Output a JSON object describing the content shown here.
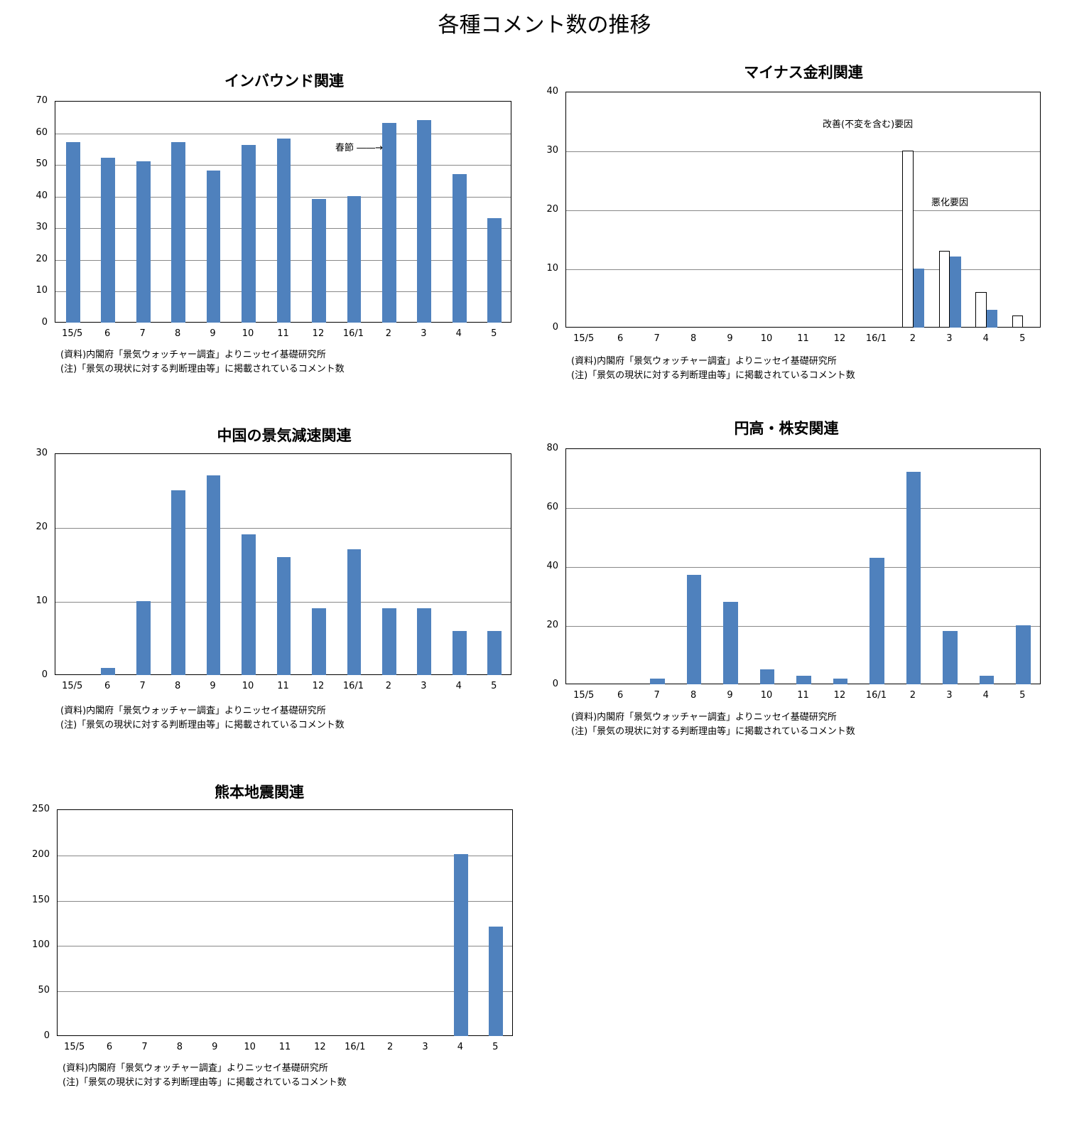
{
  "title": "各種コメント数の推移",
  "notes": {
    "source": "(資料)内閣府「景気ウォッチャー調査」よりニッセイ基礎研究所",
    "note": "(注)「景気の現状に対する判断理由等」に掲載されているコメント数"
  },
  "colors": {
    "bar": "#4f81bd",
    "grid": "#888888"
  },
  "chart_data": [
    {
      "type": "bar",
      "title": "インバウンド関連",
      "categories": [
        "15/5",
        "6",
        "7",
        "8",
        "9",
        "10",
        "11",
        "12",
        "16/1",
        "2",
        "3",
        "4",
        "5"
      ],
      "values": [
        57,
        52,
        51,
        57,
        48,
        56,
        58,
        39,
        40,
        63,
        64,
        47,
        33
      ],
      "ylim": [
        0,
        70
      ],
      "yticks": [
        0,
        10,
        20,
        30,
        40,
        50,
        60,
        70
      ],
      "annotations": [
        {
          "text": "春節",
          "target": "2"
        }
      ]
    },
    {
      "type": "bar",
      "title": "マイナス金利関連",
      "categories": [
        "15/5",
        "6",
        "7",
        "8",
        "9",
        "10",
        "11",
        "12",
        "16/1",
        "2",
        "3",
        "4",
        "5"
      ],
      "series": [
        {
          "name": "改善(不変を含む)要因",
          "values": [
            0,
            0,
            0,
            0,
            0,
            0,
            0,
            0,
            0,
            30,
            13,
            6,
            2
          ]
        },
        {
          "name": "悪化要因",
          "values": [
            0,
            0,
            0,
            0,
            0,
            0,
            0,
            0,
            0,
            10,
            12,
            3,
            0
          ]
        }
      ],
      "ylim": [
        0,
        40
      ],
      "yticks": [
        0,
        10,
        20,
        30,
        40
      ]
    },
    {
      "type": "bar",
      "title": "中国の景気減速関連",
      "categories": [
        "15/5",
        "6",
        "7",
        "8",
        "9",
        "10",
        "11",
        "12",
        "16/1",
        "2",
        "3",
        "4",
        "5"
      ],
      "values": [
        0,
        1,
        10,
        25,
        27,
        19,
        16,
        9,
        17,
        9,
        9,
        6,
        6
      ],
      "ylim": [
        0,
        30
      ],
      "yticks": [
        0,
        10,
        20,
        30
      ]
    },
    {
      "type": "bar",
      "title": "円高・株安関連",
      "categories": [
        "15/5",
        "6",
        "7",
        "8",
        "9",
        "10",
        "11",
        "12",
        "16/1",
        "2",
        "3",
        "4",
        "5"
      ],
      "values": [
        0,
        0,
        2,
        37,
        28,
        5,
        3,
        2,
        43,
        72,
        18,
        3,
        20
      ],
      "ylim": [
        0,
        80
      ],
      "yticks": [
        0,
        20,
        40,
        60,
        80
      ]
    },
    {
      "type": "bar",
      "title": "熊本地震関連",
      "categories": [
        "15/5",
        "6",
        "7",
        "8",
        "9",
        "10",
        "11",
        "12",
        "16/1",
        "2",
        "3",
        "4",
        "5"
      ],
      "values": [
        0,
        0,
        0,
        0,
        0,
        0,
        0,
        0,
        0,
        0,
        0,
        201,
        121
      ],
      "ylim": [
        0,
        250
      ],
      "yticks": [
        0,
        50,
        100,
        150,
        200,
        250
      ]
    }
  ]
}
